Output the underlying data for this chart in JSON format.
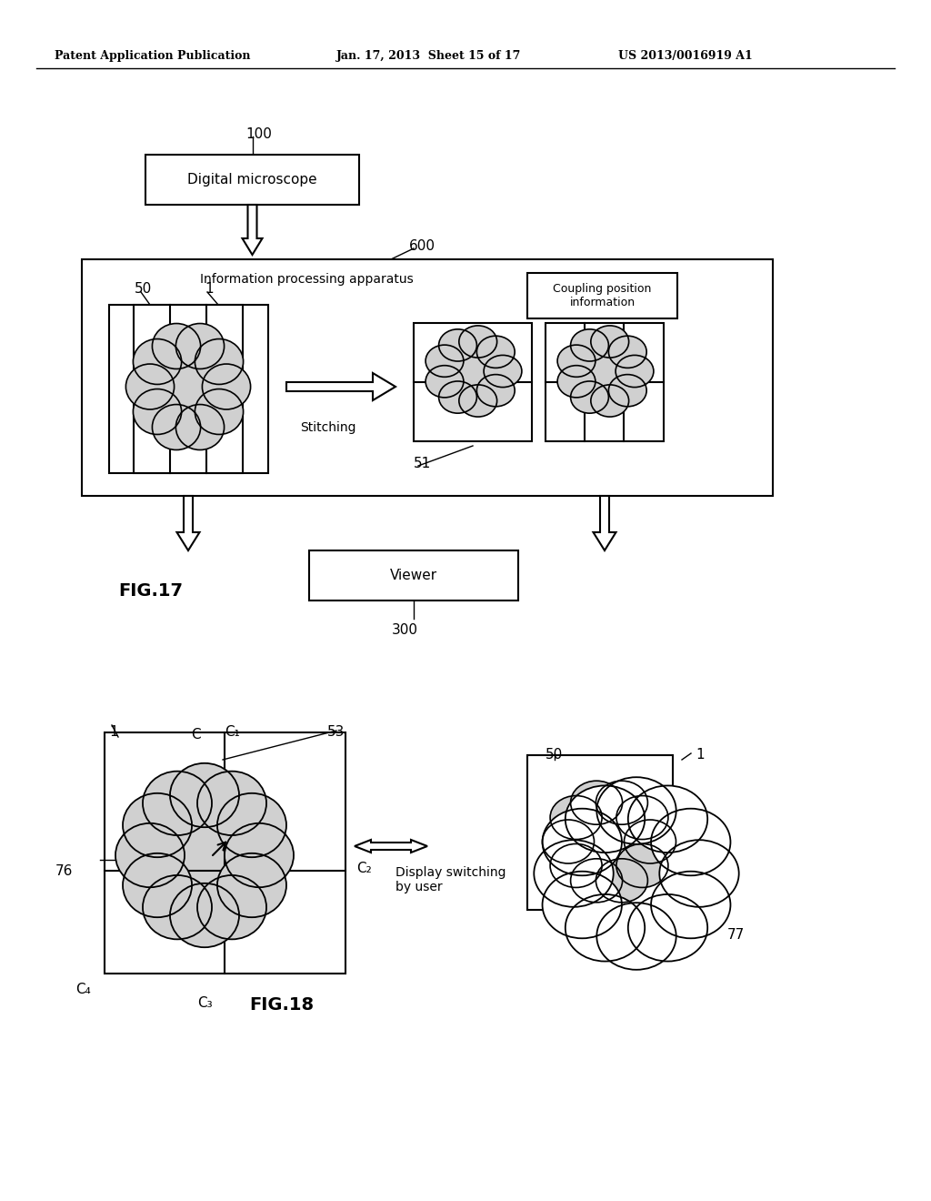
{
  "bg_color": "#ffffff",
  "header_left": "Patent Application Publication",
  "header_mid": "Jan. 17, 2013  Sheet 15 of 17",
  "header_right": "US 2013/0016919 A1",
  "fig17_label": "FIG.17",
  "fig18_label": "FIG.18",
  "box_digital_microscope": "Digital microscope",
  "box_viewer": "Viewer",
  "box_coupling": "Coupling position\ninformation",
  "box_ipa": "Information processing apparatus",
  "label_100": "100",
  "label_600": "600",
  "label_300": "300",
  "label_51": "51",
  "label_50_top": "50",
  "label_1_top": "1",
  "label_stitching": "Stitching",
  "label_1_fig18": "1",
  "label_C": "C",
  "label_C1": "C₁",
  "label_C2": "C₂",
  "label_C3": "C₃",
  "label_C4": "C₄",
  "label_53": "53",
  "label_76": "76",
  "label_50_fig18": "50",
  "label_1_fig18_right": "1",
  "label_77": "77",
  "label_display_switching": "Display switching\nby user",
  "cloud_fill": "#d0d0d0",
  "cloud_edge": "#000000",
  "line_color": "#000000"
}
